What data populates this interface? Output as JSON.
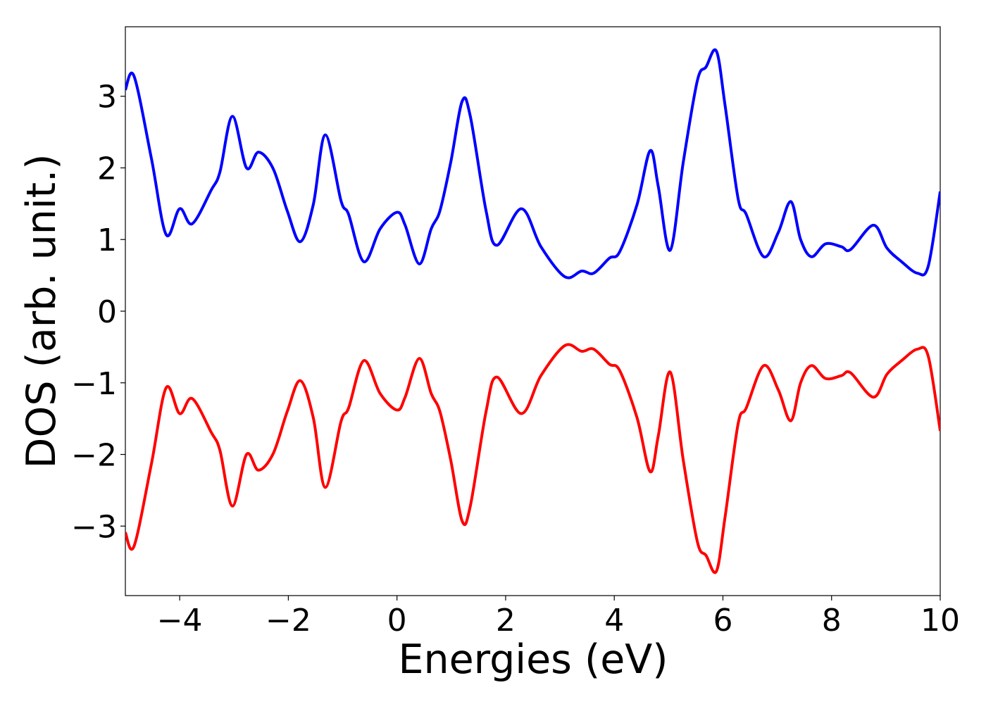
{
  "chart_data": {
    "type": "line",
    "xlabel": "Energies (eV)",
    "ylabel": "DOS (arb. unit.)",
    "x": [
      -5,
      -4.84,
      -4.52,
      -4.25,
      -4.0,
      -3.77,
      -3.42,
      -3.26,
      -3.03,
      -2.77,
      -2.55,
      -2.28,
      -2.02,
      -1.78,
      -1.54,
      -1.32,
      -1.03,
      -0.89,
      -0.61,
      -0.31,
      0.0,
      0.15,
      0.41,
      0.63,
      0.79,
      0.99,
      1.2,
      1.35,
      1.64,
      1.84,
      2.29,
      2.65,
      3.09,
      3.4,
      3.62,
      3.91,
      4.1,
      4.42,
      4.66,
      4.81,
      5.03,
      5.27,
      5.53,
      5.69,
      5.88,
      6.04,
      6.28,
      6.43,
      6.75,
      7.02,
      7.25,
      7.43,
      7.63,
      7.89,
      8.18,
      8.35,
      8.77,
      9.02,
      9.29,
      9.58,
      9.78,
      10.0
    ],
    "series": [
      {
        "color": "#0000ff",
        "values": [
          3.09,
          3.28,
          2.13,
          1.07,
          1.43,
          1.22,
          1.69,
          1.94,
          2.72,
          2.0,
          2.22,
          1.99,
          1.4,
          0.97,
          1.49,
          2.46,
          1.54,
          1.35,
          0.69,
          1.15,
          1.38,
          1.2,
          0.66,
          1.15,
          1.4,
          2.08,
          2.93,
          2.72,
          1.4,
          0.92,
          1.43,
          0.9,
          0.48,
          0.56,
          0.53,
          0.74,
          0.83,
          1.49,
          2.24,
          1.74,
          0.85,
          2.08,
          3.22,
          3.41,
          3.63,
          2.87,
          1.57,
          1.35,
          0.76,
          1.1,
          1.53,
          1.0,
          0.76,
          0.94,
          0.9,
          0.86,
          1.2,
          0.88,
          0.69,
          0.53,
          0.63,
          1.67
        ]
      },
      {
        "color": "#ff0000",
        "values": [
          -3.09,
          -3.28,
          -2.13,
          -1.07,
          -1.43,
          -1.22,
          -1.69,
          -1.94,
          -2.72,
          -2.0,
          -2.22,
          -1.99,
          -1.4,
          -0.97,
          -1.49,
          -2.46,
          -1.54,
          -1.35,
          -0.69,
          -1.15,
          -1.38,
          -1.2,
          -0.66,
          -1.15,
          -1.4,
          -2.08,
          -2.93,
          -2.72,
          -1.4,
          -0.92,
          -1.43,
          -0.9,
          -0.48,
          -0.56,
          -0.53,
          -0.74,
          -0.83,
          -1.49,
          -2.24,
          -1.74,
          -0.85,
          -2.08,
          -3.22,
          -3.41,
          -3.63,
          -2.87,
          -1.57,
          -1.35,
          -0.76,
          -1.1,
          -1.53,
          -1.0,
          -0.76,
          -0.94,
          -0.9,
          -0.86,
          -1.2,
          -0.88,
          -0.69,
          -0.53,
          -0.63,
          -1.67
        ]
      }
    ],
    "xlim": [
      -5,
      10
    ],
    "xticks": [
      {
        "value": -4,
        "label": "−4"
      },
      {
        "value": -2,
        "label": "−2"
      },
      0,
      2,
      4,
      6,
      8,
      10
    ],
    "ylim": [
      -3.97,
      3.97
    ],
    "yticks": [
      {
        "value": -3,
        "label": "−3"
      },
      {
        "value": -2,
        "label": "−2"
      },
      {
        "value": -1,
        "label": "−1"
      },
      0,
      1,
      2,
      3
    ]
  }
}
